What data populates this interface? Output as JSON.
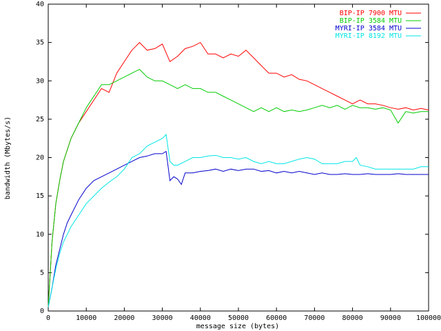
{
  "chart_data": {
    "type": "line",
    "title": "",
    "xlabel": "message size (bytes)",
    "ylabel": "bandwidth (Mbytes/s)",
    "xlim": [
      0,
      100000
    ],
    "ylim": [
      0,
      40
    ],
    "xticks": [
      0,
      10000,
      20000,
      30000,
      40000,
      50000,
      60000,
      70000,
      80000,
      90000,
      100000
    ],
    "yticks": [
      0,
      5,
      10,
      15,
      20,
      25,
      30,
      35,
      40
    ],
    "grid": false,
    "legend_position": "top-right",
    "series": [
      {
        "name": "BIP-IP 7900 MTU",
        "color": "#ff0000",
        "x": [
          0,
          1000,
          2000,
          3000,
          4000,
          5000,
          6000,
          8000,
          10000,
          12000,
          14000,
          16000,
          18000,
          20000,
          22000,
          23000,
          24000,
          26000,
          28000,
          30000,
          32000,
          34000,
          36000,
          38000,
          40000,
          42000,
          44000,
          46000,
          48000,
          50000,
          52000,
          54000,
          56000,
          58000,
          60000,
          62000,
          64000,
          66000,
          68000,
          70000,
          72000,
          74000,
          76000,
          78000,
          80000,
          82000,
          84000,
          86000,
          88000,
          90000,
          92000,
          94000,
          96000,
          98000,
          100000
        ],
        "y": [
          0.5,
          9,
          14,
          17,
          19.5,
          21,
          22.5,
          24.5,
          26,
          27.5,
          29,
          28.5,
          31,
          32.5,
          34,
          34.5,
          35,
          34,
          34.2,
          34.8,
          32.5,
          33.2,
          34.2,
          34.5,
          35,
          33.5,
          33.5,
          33,
          33.5,
          33.2,
          34,
          33,
          32,
          31,
          31,
          30.5,
          30.8,
          30.2,
          30,
          29.5,
          29,
          28.5,
          28,
          27.5,
          27,
          27.5,
          27,
          27,
          26.8,
          26.5,
          26.3,
          26.5,
          26.2,
          26.4,
          26.2
        ]
      },
      {
        "name": "BIP-IP 3584 MTU",
        "color": "#00cc00",
        "x": [
          0,
          1000,
          2000,
          3000,
          4000,
          5000,
          6000,
          8000,
          10000,
          12000,
          14000,
          16000,
          18000,
          20000,
          22000,
          24000,
          26000,
          28000,
          30000,
          32000,
          34000,
          36000,
          38000,
          40000,
          42000,
          44000,
          46000,
          48000,
          50000,
          52000,
          54000,
          56000,
          58000,
          60000,
          62000,
          64000,
          66000,
          68000,
          70000,
          72000,
          74000,
          76000,
          78000,
          80000,
          82000,
          84000,
          86000,
          88000,
          90000,
          92000,
          94000,
          96000,
          98000,
          100000
        ],
        "y": [
          0.5,
          9,
          14,
          17,
          19.5,
          21,
          22.5,
          24.5,
          26.5,
          28,
          29.5,
          29.5,
          30,
          30.5,
          31,
          31.5,
          30.5,
          30,
          30,
          29.5,
          29,
          29.5,
          29,
          29,
          28.5,
          28.5,
          28,
          27.5,
          27,
          26.5,
          26,
          26.5,
          26,
          26.5,
          26,
          26.2,
          26,
          26.2,
          26.5,
          26.8,
          26.5,
          26.8,
          26.3,
          26.8,
          26.5,
          26.5,
          26.3,
          26.5,
          26.2,
          24.5,
          26,
          25.8,
          26,
          26
        ]
      },
      {
        "name": "MYRI-IP 3584 MTU",
        "color": "#0000cc",
        "x": [
          0,
          1000,
          2000,
          3000,
          4000,
          5000,
          6000,
          8000,
          10000,
          12000,
          14000,
          16000,
          18000,
          20000,
          22000,
          24000,
          26000,
          28000,
          30000,
          31000,
          32000,
          33000,
          34000,
          35000,
          36000,
          38000,
          40000,
          42000,
          44000,
          46000,
          48000,
          50000,
          52000,
          54000,
          56000,
          58000,
          60000,
          62000,
          64000,
          66000,
          68000,
          70000,
          72000,
          74000,
          76000,
          78000,
          80000,
          82000,
          84000,
          86000,
          88000,
          90000,
          92000,
          94000,
          96000,
          98000,
          100000
        ],
        "y": [
          0.5,
          3,
          6,
          8,
          10,
          11.5,
          12.5,
          14.5,
          16,
          17,
          17.5,
          18,
          18.5,
          19,
          19.5,
          20,
          20.2,
          20.5,
          20.5,
          20.8,
          17,
          17.5,
          17.2,
          16.5,
          18,
          18,
          18.2,
          18.3,
          18.5,
          18.2,
          18.5,
          18.3,
          18.5,
          18.5,
          18.2,
          18.3,
          18,
          18.2,
          18,
          18.2,
          18,
          17.8,
          18,
          17.8,
          17.8,
          17.9,
          17.8,
          17.8,
          17.9,
          17.8,
          17.8,
          17.8,
          17.9,
          17.8,
          17.8,
          17.8,
          17.8
        ]
      },
      {
        "name": "MYRI-IP 8192 MTU",
        "color": "#00e5e5",
        "x": [
          0,
          1000,
          2000,
          3000,
          4000,
          5000,
          6000,
          8000,
          10000,
          12000,
          14000,
          16000,
          18000,
          20000,
          22000,
          24000,
          26000,
          28000,
          30000,
          31000,
          32000,
          33000,
          34000,
          36000,
          38000,
          40000,
          42000,
          44000,
          46000,
          48000,
          50000,
          52000,
          54000,
          56000,
          58000,
          60000,
          62000,
          64000,
          66000,
          68000,
          70000,
          72000,
          74000,
          76000,
          78000,
          80000,
          81000,
          82000,
          84000,
          86000,
          88000,
          90000,
          92000,
          94000,
          96000,
          98000,
          100000
        ],
        "y": [
          0.5,
          3,
          5.5,
          7.5,
          9,
          10,
          11,
          12.5,
          14,
          15,
          16,
          16.8,
          17.5,
          18.5,
          20,
          20.5,
          21.5,
          22,
          22.5,
          23,
          19.5,
          19,
          19,
          19.5,
          20,
          20,
          20.2,
          20.3,
          20,
          20,
          19.8,
          20,
          19.5,
          19.2,
          19.5,
          19.2,
          19.2,
          19.5,
          19.8,
          20,
          19.8,
          19.2,
          19.2,
          19.2,
          19.5,
          19.5,
          20,
          19,
          18.8,
          18.5,
          18.5,
          18.5,
          18.5,
          18.5,
          18.5,
          18.8,
          18.8
        ]
      }
    ]
  }
}
